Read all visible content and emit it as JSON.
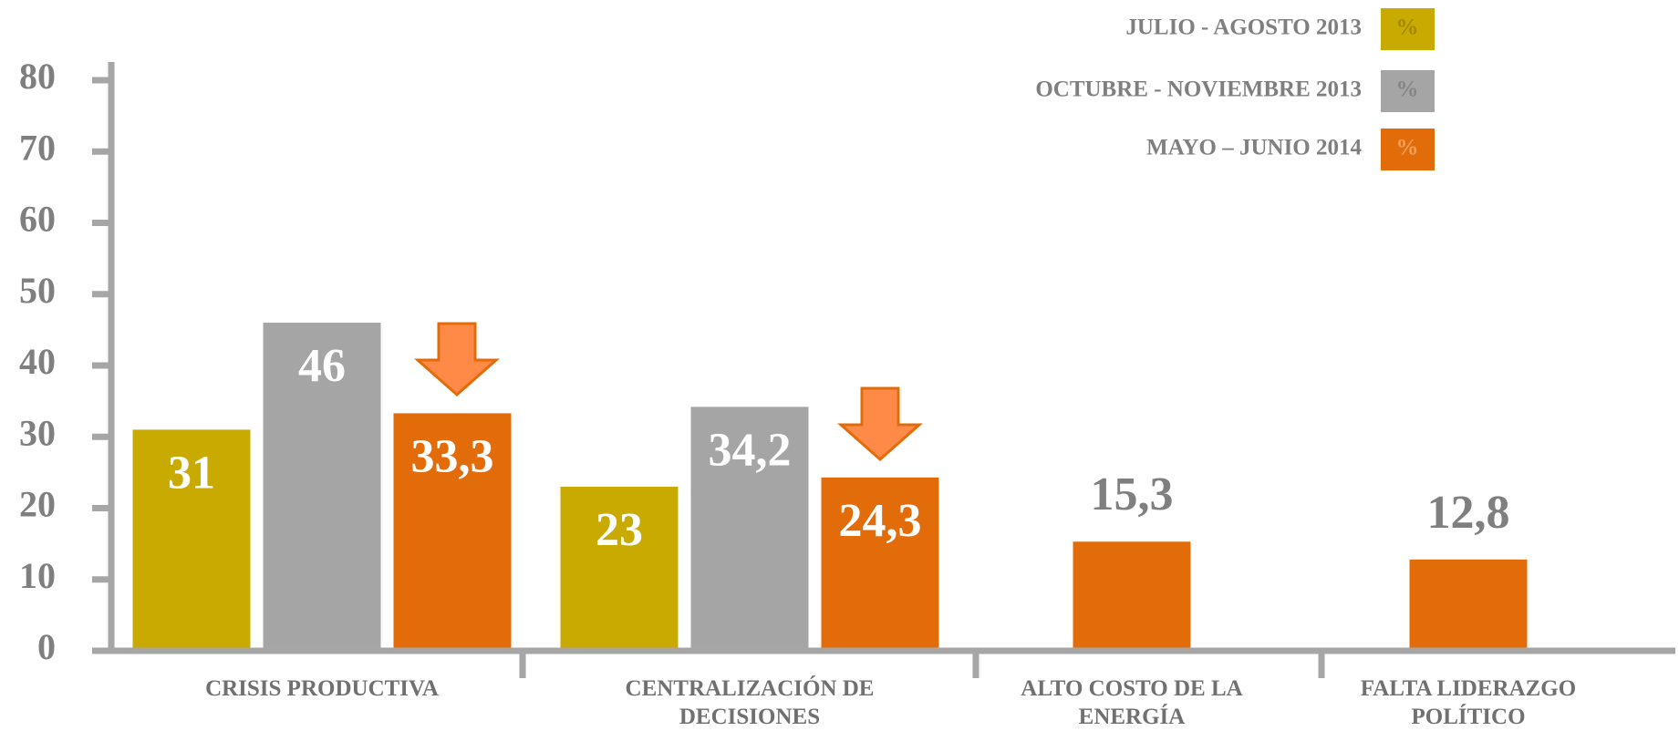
{
  "chart_data": {
    "type": "bar",
    "categories": [
      "CRISIS PRODUCTIVA",
      "CENTRALIZACIÓN DE\nDECISIONES",
      "ALTO COSTO DE LA\nENERGÍA",
      "FALTA LIDERAZGO\nPOLÍTICO"
    ],
    "series": [
      {
        "name": "JULIO - AGOSTO 2013",
        "swatch_label": "%",
        "color": "#c9aa00",
        "values": [
          31,
          23,
          null,
          null
        ],
        "value_labels": [
          "31",
          "23",
          null,
          null
        ]
      },
      {
        "name": "OCTUBRE - NOVIEMBRE 2013",
        "swatch_label": "%",
        "color": "#a5a5a5",
        "values": [
          46,
          34.2,
          null,
          null
        ],
        "value_labels": [
          "46",
          "34,2",
          null,
          null
        ]
      },
      {
        "name": "MAYO – JUNIO 2014",
        "swatch_label": "%",
        "color": "#e36c0a",
        "values": [
          33.3,
          24.3,
          15.3,
          12.8
        ],
        "value_labels": [
          "33,3",
          "24,3",
          "15,3",
          "12,8"
        ]
      }
    ],
    "ylim": [
      0,
      80
    ],
    "yticks": [
      0,
      10,
      20,
      30,
      40,
      50,
      60,
      70,
      80
    ],
    "grid": false,
    "legend": "top-right"
  }
}
